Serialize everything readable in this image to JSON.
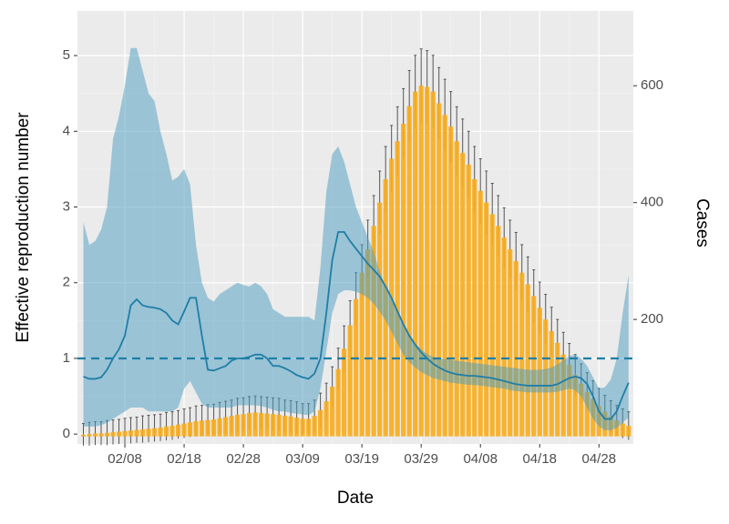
{
  "chart_data": {
    "type": "combo",
    "x_label": "Date",
    "y_label": "Effective reproduction number",
    "y2_label": "Cases",
    "x": [
      "02/01",
      "02/02",
      "02/03",
      "02/04",
      "02/05",
      "02/06",
      "02/07",
      "02/08",
      "02/09",
      "02/10",
      "02/11",
      "02/12",
      "02/13",
      "02/14",
      "02/15",
      "02/16",
      "02/17",
      "02/18",
      "02/19",
      "02/20",
      "02/21",
      "02/22",
      "02/23",
      "02/24",
      "02/25",
      "02/26",
      "02/27",
      "02/28",
      "02/29",
      "03/01",
      "03/02",
      "03/03",
      "03/04",
      "03/05",
      "03/06",
      "03/07",
      "03/08",
      "03/09",
      "03/10",
      "03/11",
      "03/12",
      "03/13",
      "03/14",
      "03/15",
      "03/16",
      "03/17",
      "03/18",
      "03/19",
      "03/20",
      "03/21",
      "03/22",
      "03/23",
      "03/24",
      "03/25",
      "03/26",
      "03/27",
      "03/28",
      "03/29",
      "03/30",
      "03/31",
      "04/01",
      "04/02",
      "04/03",
      "04/04",
      "04/05",
      "04/06",
      "04/07",
      "04/08",
      "04/09",
      "04/10",
      "04/11",
      "04/12",
      "04/13",
      "04/14",
      "04/15",
      "04/16",
      "04/17",
      "04/18",
      "04/19",
      "04/20",
      "04/21",
      "04/22",
      "04/23",
      "04/24",
      "04/25",
      "04/26",
      "04/27",
      "04/28",
      "04/29",
      "04/30",
      "05/01",
      "05/02",
      "05/03"
    ],
    "xticks": [
      "02/08",
      "02/18",
      "02/28",
      "03/09",
      "03/19",
      "03/29",
      "04/08",
      "04/18",
      "04/28"
    ],
    "ylim": [
      -0.13,
      5.59
    ],
    "yticks": [
      0,
      1,
      2,
      3,
      4,
      5
    ],
    "y2lim": [
      -13,
      728
    ],
    "y2ticks": [
      200,
      400,
      600
    ],
    "grid": true,
    "background": "#ebebeb",
    "bars": {
      "axis": "y2",
      "color": "#f7ad1e",
      "error_color": "#555555",
      "values": [
        3,
        4,
        5,
        5,
        6,
        7,
        8,
        9,
        10,
        11,
        12,
        13,
        14,
        15,
        17,
        18,
        20,
        22,
        24,
        26,
        27,
        28,
        29,
        31,
        33,
        35,
        37,
        38,
        40,
        41,
        40,
        39,
        38,
        37,
        35,
        34,
        32,
        30,
        30,
        35,
        45,
        60,
        85,
        115,
        150,
        190,
        235,
        280,
        320,
        360,
        400,
        440,
        475,
        505,
        535,
        565,
        590,
        600,
        598,
        590,
        570,
        550,
        530,
        505,
        485,
        465,
        440,
        420,
        400,
        380,
        360,
        340,
        320,
        300,
        280,
        260,
        240,
        220,
        200,
        180,
        160,
        140,
        122,
        105,
        90,
        76,
        64,
        52,
        42,
        34,
        27,
        22,
        18
      ],
      "errors": [
        19,
        20,
        20,
        20,
        21,
        21,
        21,
        22,
        22,
        22,
        23,
        23,
        23,
        23,
        24,
        24,
        24,
        25,
        25,
        26,
        26,
        26,
        26,
        27,
        27,
        27,
        28,
        28,
        28,
        28,
        28,
        28,
        28,
        28,
        27,
        27,
        27,
        26,
        26,
        27,
        29,
        31,
        34,
        36,
        39,
        42,
        45,
        48,
        50,
        52,
        54,
        56,
        57,
        59,
        60,
        61,
        62,
        63,
        62,
        62,
        61,
        61,
        60,
        59,
        58,
        57,
        56,
        55,
        54,
        53,
        52,
        51,
        50,
        49,
        48,
        47,
        45,
        44,
        43,
        41,
        40,
        38,
        37,
        35,
        34,
        33,
        31,
        30,
        28,
        27,
        26,
        25,
        24
      ]
    },
    "band": {
      "color": "#4a9cc0",
      "opacity": 0.5,
      "upper": [
        2.8,
        2.5,
        2.55,
        2.7,
        3.0,
        3.9,
        4.2,
        4.6,
        5.1,
        5.1,
        4.8,
        4.5,
        4.4,
        4.0,
        3.7,
        3.35,
        3.4,
        3.5,
        3.3,
        2.5,
        2.0,
        1.8,
        1.75,
        1.85,
        1.9,
        1.95,
        2.0,
        1.97,
        1.95,
        2.0,
        1.95,
        1.85,
        1.65,
        1.6,
        1.55,
        1.55,
        1.55,
        1.55,
        1.55,
        1.5,
        2.2,
        3.2,
        3.7,
        3.8,
        3.6,
        3.3,
        3.0,
        2.8,
        2.6,
        2.4,
        2.15,
        1.95,
        1.78,
        1.62,
        1.45,
        1.32,
        1.2,
        1.12,
        1.06,
        1.02,
        1.0,
        0.99,
        0.98,
        0.97,
        0.96,
        0.95,
        0.94,
        0.93,
        0.92,
        0.91,
        0.9,
        0.89,
        0.88,
        0.87,
        0.86,
        0.85,
        0.85,
        0.85,
        0.86,
        0.88,
        0.92,
        0.98,
        1.03,
        1.05,
        1.0,
        0.9,
        0.75,
        0.6,
        0.62,
        0.72,
        1.0,
        1.6,
        2.1
      ],
      "lower": [
        0.1,
        0.1,
        0.1,
        0.12,
        0.15,
        0.2,
        0.25,
        0.3,
        0.35,
        0.35,
        0.35,
        0.3,
        0.3,
        0.3,
        0.3,
        0.3,
        0.35,
        0.6,
        0.7,
        0.55,
        0.4,
        0.35,
        0.35,
        0.35,
        0.35,
        0.35,
        0.38,
        0.38,
        0.38,
        0.38,
        0.37,
        0.35,
        0.32,
        0.3,
        0.3,
        0.28,
        0.27,
        0.26,
        0.25,
        0.3,
        0.6,
        1.1,
        1.6,
        1.85,
        1.9,
        1.9,
        1.88,
        1.85,
        1.8,
        1.72,
        1.62,
        1.5,
        1.35,
        1.2,
        1.05,
        0.95,
        0.88,
        0.82,
        0.78,
        0.74,
        0.72,
        0.7,
        0.68,
        0.67,
        0.66,
        0.65,
        0.65,
        0.64,
        0.63,
        0.62,
        0.61,
        0.6,
        0.58,
        0.57,
        0.56,
        0.55,
        0.55,
        0.55,
        0.55,
        0.55,
        0.56,
        0.58,
        0.6,
        0.58,
        0.5,
        0.35,
        0.2,
        0.1,
        0.05,
        0.05,
        0.08,
        0.15,
        0.22
      ]
    },
    "line": {
      "color": "#1f7ea6",
      "values": [
        0.76,
        0.73,
        0.73,
        0.75,
        0.85,
        1.0,
        1.12,
        1.3,
        1.7,
        1.78,
        1.7,
        1.68,
        1.67,
        1.65,
        1.6,
        1.5,
        1.45,
        1.62,
        1.8,
        1.8,
        1.3,
        0.85,
        0.84,
        0.87,
        0.9,
        0.97,
        1.0,
        1.0,
        1.02,
        1.05,
        1.05,
        1.0,
        0.9,
        0.9,
        0.87,
        0.83,
        0.78,
        0.75,
        0.73,
        0.8,
        1.0,
        1.6,
        2.3,
        2.67,
        2.67,
        2.55,
        2.45,
        2.35,
        2.25,
        2.17,
        2.08,
        1.95,
        1.8,
        1.62,
        1.45,
        1.3,
        1.18,
        1.08,
        1.0,
        0.93,
        0.88,
        0.84,
        0.81,
        0.79,
        0.78,
        0.77,
        0.77,
        0.76,
        0.75,
        0.74,
        0.72,
        0.7,
        0.68,
        0.66,
        0.65,
        0.64,
        0.64,
        0.64,
        0.64,
        0.64,
        0.66,
        0.7,
        0.74,
        0.76,
        0.74,
        0.66,
        0.5,
        0.3,
        0.2,
        0.2,
        0.3,
        0.5,
        0.68
      ]
    },
    "hline": {
      "value": 1,
      "color": "#1f7ea6",
      "dashed": true
    }
  }
}
